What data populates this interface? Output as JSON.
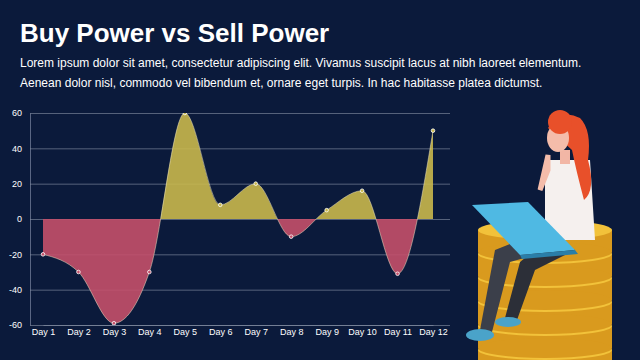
{
  "chart_data": {
    "type": "area",
    "title": "Buy Power vs Sell Power",
    "subtitle": [
      "Lorem ipsum dolor sit amet, consectetur adipiscing elit. Vivamus suscipit lacus at nibh laoreet elementum.",
      "Aenean dolor nisl, commodo vel bibendum et, ornare eget turpis. In hac habitasse platea dictumst."
    ],
    "categories": [
      "Day 1",
      "Day 2",
      "Day 3",
      "Day 4",
      "Day 5",
      "Day 6",
      "Day 7",
      "Day 8",
      "Day 9",
      "Day 10",
      "Day 11",
      "Day 12"
    ],
    "values": [
      -20,
      -30,
      -59,
      -30,
      60,
      8,
      20,
      -10,
      5,
      16,
      -31,
      50
    ],
    "colors": [
      "#c4506a",
      "#c4506a",
      "#c4506a",
      "#c4506a",
      "#c9b84c",
      "#c9b84c",
      "#c9b84c",
      "#c4506a",
      "#c9b84c",
      "#c9b84c",
      "#c4506a",
      "#c9b84c"
    ],
    "ylim": [
      -60,
      60
    ],
    "yticks": [
      -60,
      -40,
      -20,
      0,
      20,
      40,
      60
    ],
    "grid": true,
    "marker": "circle"
  }
}
